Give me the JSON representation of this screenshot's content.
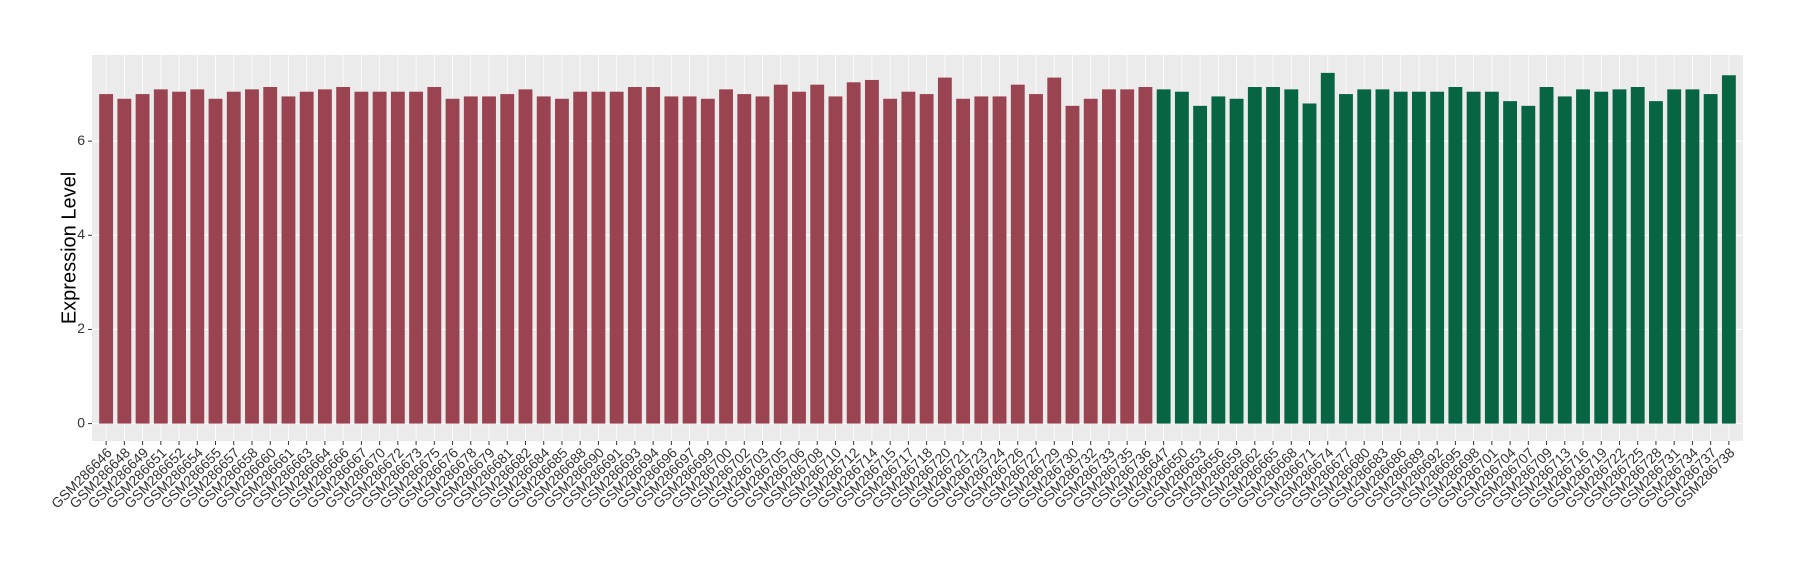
{
  "chart_data": {
    "type": "bar",
    "y_label": "Expression Level",
    "categories": [
      "GSM286646",
      "GSM286648",
      "GSM286649",
      "GSM286651",
      "GSM286652",
      "GSM286654",
      "GSM286655",
      "GSM286657",
      "GSM286658",
      "GSM286660",
      "GSM286661",
      "GSM286663",
      "GSM286664",
      "GSM286666",
      "GSM286667",
      "GSM286670",
      "GSM286672",
      "GSM286673",
      "GSM286675",
      "GSM286676",
      "GSM286678",
      "GSM286679",
      "GSM286681",
      "GSM286682",
      "GSM286684",
      "GSM286685",
      "GSM286688",
      "GSM286690",
      "GSM286691",
      "GSM286693",
      "GSM286694",
      "GSM286696",
      "GSM286697",
      "GSM286699",
      "GSM286700",
      "GSM286702",
      "GSM286703",
      "GSM286705",
      "GSM286706",
      "GSM286708",
      "GSM286710",
      "GSM286712",
      "GSM286714",
      "GSM286715",
      "GSM286717",
      "GSM286718",
      "GSM286720",
      "GSM286721",
      "GSM286723",
      "GSM286724",
      "GSM286726",
      "GSM286727",
      "GSM286729",
      "GSM286730",
      "GSM286732",
      "GSM286733",
      "GSM286735",
      "GSM286736",
      "GSM286647",
      "GSM286650",
      "GSM286653",
      "GSM286656",
      "GSM286659",
      "GSM286662",
      "GSM286665",
      "GSM286668",
      "GSM286671",
      "GSM286674",
      "GSM286677",
      "GSM286680",
      "GSM286683",
      "GSM286686",
      "GSM286689",
      "GSM286692",
      "GSM286695",
      "GSM286698",
      "GSM286701",
      "GSM286704",
      "GSM286707",
      "GSM286709",
      "GSM286713",
      "GSM286716",
      "GSM286719",
      "GSM286722",
      "GSM286725",
      "GSM286728",
      "GSM286731",
      "GSM286734",
      "GSM286737",
      "GSM286738"
    ],
    "values": [
      7.0,
      6.9,
      7.0,
      7.1,
      7.05,
      7.1,
      6.9,
      7.05,
      7.1,
      7.15,
      6.95,
      7.05,
      7.1,
      7.15,
      7.05,
      7.05,
      7.05,
      7.05,
      7.15,
      6.9,
      6.95,
      6.95,
      7.0,
      7.1,
      6.95,
      6.9,
      7.05,
      7.05,
      7.05,
      7.15,
      7.15,
      6.95,
      6.95,
      6.9,
      7.1,
      7.0,
      6.95,
      7.2,
      7.05,
      7.2,
      6.95,
      7.25,
      7.3,
      6.9,
      7.05,
      7.0,
      7.35,
      6.9,
      6.95,
      6.95,
      7.2,
      7.0,
      7.35,
      6.75,
      6.9,
      7.1,
      7.1,
      7.15,
      7.1,
      7.05,
      6.75,
      6.95,
      6.9,
      7.15,
      7.15,
      7.1,
      6.8,
      7.45,
      7.0,
      7.1,
      7.1,
      7.05,
      7.05,
      7.05,
      7.15,
      7.05,
      7.05,
      6.85,
      6.75,
      7.15,
      6.95,
      7.1,
      7.05,
      7.1,
      7.15,
      6.85,
      7.1,
      7.1,
      7.0,
      7.4
    ],
    "colors": [
      "#9b4451",
      "#9b4451",
      "#9b4451",
      "#9b4451",
      "#9b4451",
      "#9b4451",
      "#9b4451",
      "#9b4451",
      "#9b4451",
      "#9b4451",
      "#9b4451",
      "#9b4451",
      "#9b4451",
      "#9b4451",
      "#9b4451",
      "#9b4451",
      "#9b4451",
      "#9b4451",
      "#9b4451",
      "#9b4451",
      "#9b4451",
      "#9b4451",
      "#9b4451",
      "#9b4451",
      "#9b4451",
      "#9b4451",
      "#9b4451",
      "#9b4451",
      "#9b4451",
      "#9b4451",
      "#9b4451",
      "#9b4451",
      "#9b4451",
      "#9b4451",
      "#9b4451",
      "#9b4451",
      "#9b4451",
      "#9b4451",
      "#9b4451",
      "#9b4451",
      "#9b4451",
      "#9b4451",
      "#9b4451",
      "#9b4451",
      "#9b4451",
      "#9b4451",
      "#9b4451",
      "#9b4451",
      "#9b4451",
      "#9b4451",
      "#9b4451",
      "#9b4451",
      "#9b4451",
      "#9b4451",
      "#9b4451",
      "#9b4451",
      "#9b4451",
      "#9b4451",
      "#076543",
      "#076543",
      "#076543",
      "#076543",
      "#076543",
      "#076543",
      "#076543",
      "#076543",
      "#076543",
      "#076543",
      "#076543",
      "#076543",
      "#076543",
      "#076543",
      "#076543",
      "#076543",
      "#076543",
      "#076543",
      "#076543",
      "#076543",
      "#076543",
      "#076543",
      "#076543",
      "#076543",
      "#076543",
      "#076543",
      "#076543",
      "#076543",
      "#076543",
      "#076543",
      "#076543",
      "#076543"
    ],
    "ylim": [
      -0.37,
      7.83
    ],
    "yticks": [
      0,
      2,
      4,
      6
    ],
    "grid": true
  }
}
